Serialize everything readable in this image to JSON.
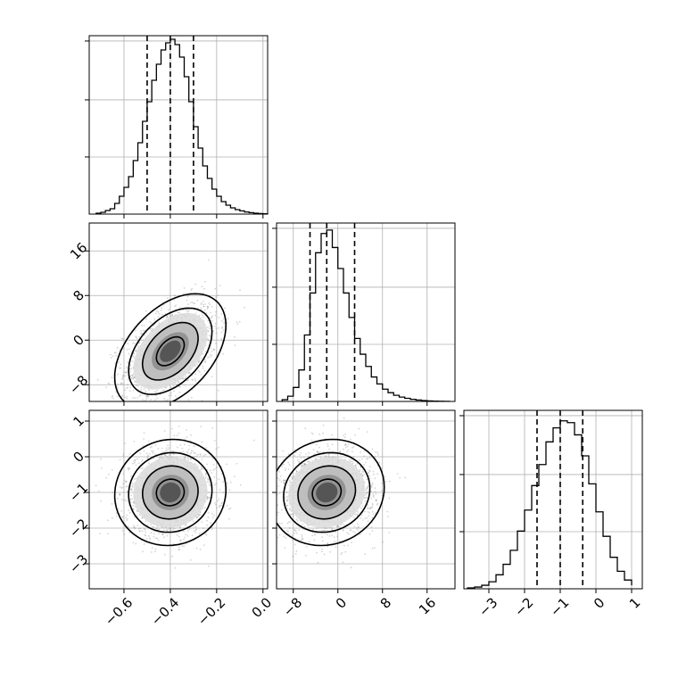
{
  "chart_data": {
    "type": "corner",
    "parameters": [
      {
        "xlim": [
          -0.75,
          0.02
        ],
        "ticks": [
          "−0.6",
          "−0.4",
          "−0.2",
          "0.0"
        ],
        "tick_values": [
          -0.6,
          -0.4,
          -0.2,
          0.0
        ],
        "quantiles": [
          -0.5,
          -0.4,
          -0.3
        ],
        "hist_bins": [
          -0.72,
          -0.7,
          -0.68,
          -0.66,
          -0.64,
          -0.62,
          -0.6,
          -0.58,
          -0.56,
          -0.54,
          -0.52,
          -0.5,
          -0.48,
          -0.46,
          -0.44,
          -0.42,
          -0.4,
          -0.38,
          -0.36,
          -0.34,
          -0.32,
          -0.3,
          -0.28,
          -0.26,
          -0.24,
          -0.22,
          -0.2,
          -0.18,
          -0.16,
          -0.14,
          -0.12,
          -0.1,
          -0.08,
          -0.06,
          -0.04,
          -0.02,
          0.0,
          0.02
        ],
        "hist_counts": [
          0.5,
          1,
          2,
          3,
          6,
          10,
          15,
          21,
          30,
          40,
          52,
          63,
          75,
          84,
          92,
          96,
          98,
          95,
          88,
          77,
          63,
          49,
          37,
          27,
          20,
          14,
          10,
          7,
          5,
          3.5,
          2.5,
          1.8,
          1.2,
          0.8,
          0.5,
          0.3,
          0.2
        ],
        "hist_ymax": 100
      },
      {
        "xlim": [
          -11,
          21
        ],
        "ticks": [
          "−8",
          "0",
          "8",
          "16"
        ],
        "tick_values": [
          -8,
          0,
          8,
          16
        ],
        "quantiles": [
          -5,
          -2,
          3
        ],
        "hist_bins": [
          -10,
          -9,
          -8,
          -7,
          -6,
          -5,
          -4,
          -3,
          -2,
          -1,
          0,
          1,
          2,
          3,
          4,
          5,
          6,
          7,
          8,
          9,
          10,
          11,
          12,
          13,
          14,
          15,
          16,
          17,
          18,
          19,
          20
        ],
        "hist_counts": [
          1,
          3,
          8,
          18,
          38,
          62,
          85,
          96,
          98,
          88,
          76,
          62,
          48,
          36,
          27,
          20,
          14,
          10,
          7,
          5,
          3.5,
          2.5,
          1.8,
          1.2,
          0.8,
          0.5,
          0.3,
          0.2,
          0.1,
          0.05
        ],
        "hist_ymax": 102
      },
      {
        "xlim": [
          -3.7,
          1.3
        ],
        "ticks": [
          "−3",
          "−2",
          "−1",
          "0",
          "1"
        ],
        "tick_values": [
          -3,
          -2,
          -1,
          0,
          1
        ],
        "quantiles": [
          -1.65,
          -1.0,
          -0.37
        ],
        "hist_bins": [
          -3.6,
          -3.4,
          -3.2,
          -3.0,
          -2.8,
          -2.6,
          -2.4,
          -2.2,
          -2.0,
          -1.8,
          -1.6,
          -1.4,
          -1.2,
          -1.0,
          -0.8,
          -0.6,
          -0.4,
          -0.2,
          0.0,
          0.2,
          0.4,
          0.6,
          0.8,
          1.0
        ],
        "hist_counts": [
          0.5,
          1,
          2,
          4,
          8,
          14,
          22,
          33,
          45,
          59,
          71,
          84,
          92,
          96,
          95,
          88,
          76,
          60,
          44,
          30,
          18,
          10,
          5,
          2
        ],
        "hist_ymax": 102
      }
    ],
    "pairs": [
      {
        "row": 1,
        "col": 0,
        "ylim": [
          -11,
          21
        ],
        "yticks": [
          "−8",
          "0",
          "8",
          "16"
        ],
        "ytick_values": [
          -8,
          0,
          8,
          16
        ],
        "center": [
          -0.4,
          -2
        ],
        "sigma": [
          0.1,
          4.3
        ],
        "rho": 0.45
      },
      {
        "row": 2,
        "col": 0,
        "ylim": [
          -3.7,
          1.3
        ],
        "yticks": [
          "−3",
          "−2",
          "−1",
          "0",
          "1"
        ],
        "ytick_values": [
          -3,
          -2,
          -1,
          0,
          1
        ],
        "center": [
          -0.4,
          -1
        ],
        "sigma": [
          0.1,
          0.62
        ],
        "rho": 0.05
      },
      {
        "row": 2,
        "col": 1,
        "ylim": [
          -3.7,
          1.3
        ],
        "yticks": [
          "−3",
          "−2",
          "−1",
          "0",
          "1"
        ],
        "ytick_values": [
          -3,
          -2,
          -1,
          0,
          1
        ],
        "center": [
          -2,
          -1
        ],
        "sigma": [
          4.3,
          0.62
        ],
        "rho": 0.1
      }
    ],
    "contour_levels_sigma": [
      0.5,
      1.0,
      1.5,
      2.0
    ],
    "grid": true
  }
}
